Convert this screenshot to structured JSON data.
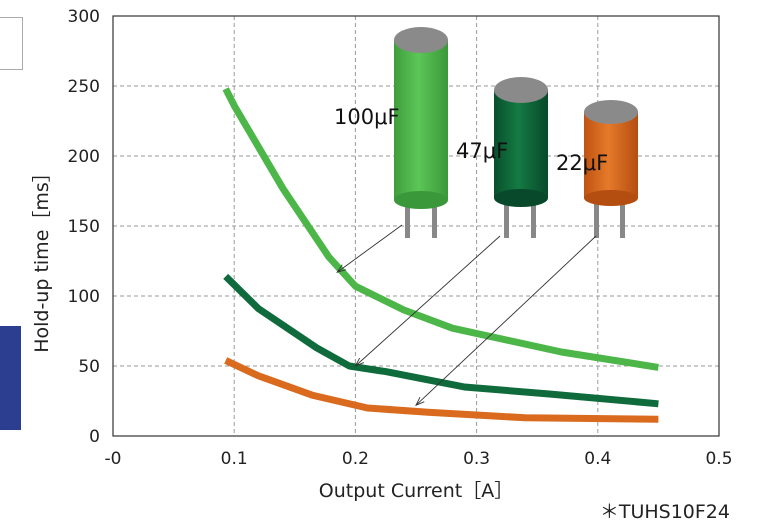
{
  "chart_data": {
    "type": "line",
    "xlabel": "Output Current［A］",
    "ylabel": "Hold-up time［ms］",
    "x_ticks": [
      "-0",
      "0.1",
      "0.2",
      "0.3",
      "0.4",
      "0.5"
    ],
    "y_ticks": [
      "0",
      "50",
      "100",
      "150",
      "200",
      "250",
      "300"
    ],
    "xlim": [
      0,
      0.5
    ],
    "ylim": [
      0,
      300
    ],
    "grid": true,
    "footnote": "＊TUHS10F24",
    "series": [
      {
        "name": "100μF",
        "color": "#4cb748",
        "x": [
          0.093,
          0.1,
          0.14,
          0.178,
          0.2,
          0.24,
          0.28,
          0.37,
          0.45
        ],
        "y": [
          248,
          236,
          177,
          128,
          107,
          90,
          77,
          60,
          49
        ]
      },
      {
        "name": "47μF",
        "color": "#0f6b3c",
        "x": [
          0.093,
          0.12,
          0.168,
          0.195,
          0.225,
          0.29,
          0.36,
          0.45
        ],
        "y": [
          114,
          91,
          63,
          50,
          46,
          35,
          30,
          23
        ]
      },
      {
        "name": "22μF",
        "color": "#d96a1e",
        "x": [
          0.093,
          0.12,
          0.165,
          0.21,
          0.26,
          0.34,
          0.45
        ],
        "y": [
          54,
          43,
          29,
          20,
          17,
          13,
          12
        ]
      }
    ],
    "capacitors": [
      {
        "label": "100μF",
        "body_color": "#4cb748",
        "points_to": [
          0.185,
          117
        ]
      },
      {
        "label": "47μF",
        "body_color": "#0f6b3c",
        "points_to": [
          0.2,
          50
        ]
      },
      {
        "label": "22μF",
        "body_color": "#d96a1e",
        "points_to": [
          0.25,
          22
        ]
      }
    ]
  }
}
